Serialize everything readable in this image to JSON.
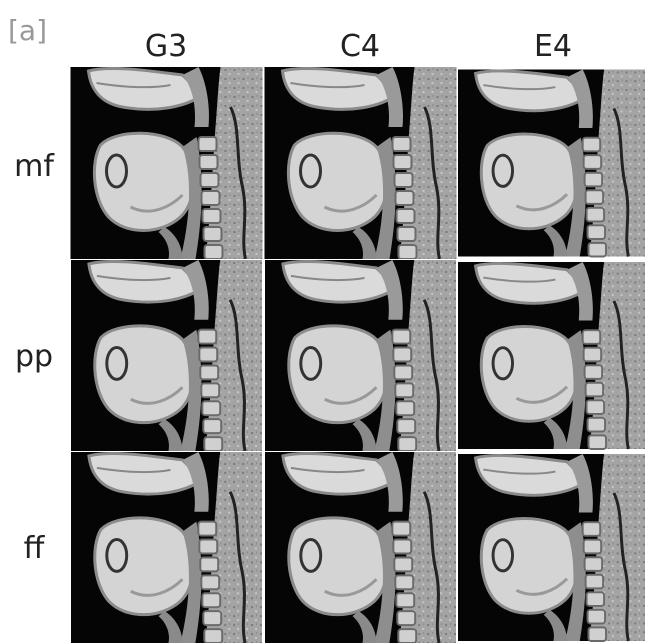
{
  "panel_label": "[a]",
  "columns": [
    "G3",
    "C4",
    "E4"
  ],
  "rows": [
    "mf",
    "pp",
    "ff"
  ]
}
